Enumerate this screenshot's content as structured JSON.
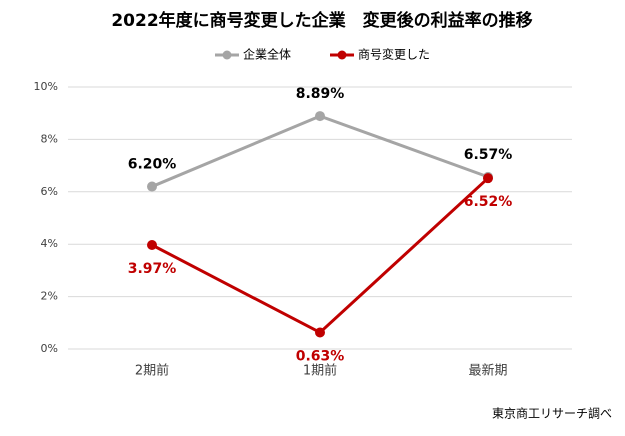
{
  "chart_data": {
    "type": "line",
    "title": "2022年度に商号変更した企業　変更後の利益率の推移",
    "categories": [
      "2期前",
      "1期前",
      "最新期"
    ],
    "series": [
      {
        "name": "企業全体",
        "color": "#a5a5a5",
        "values": [
          6.2,
          8.89,
          6.57
        ],
        "value_labels": [
          "6.20%",
          "8.89%",
          "6.57%"
        ]
      },
      {
        "name": "商号変更した",
        "color": "#c00000",
        "values": [
          3.97,
          0.63,
          6.52
        ],
        "value_labels": [
          "3.97%",
          "0.63%",
          "6.52%"
        ]
      }
    ],
    "ylim": [
      0,
      10
    ],
    "yticks": [
      {
        "value": 0,
        "label": "0%"
      },
      {
        "value": 2,
        "label": "2%"
      },
      {
        "value": 4,
        "label": "4%"
      },
      {
        "value": 6,
        "label": "6%"
      },
      {
        "value": 8,
        "label": "8%"
      },
      {
        "value": 10,
        "label": "10%"
      }
    ],
    "grid": true,
    "legend": "top",
    "source": "東京商工リサーチ調べ"
  }
}
